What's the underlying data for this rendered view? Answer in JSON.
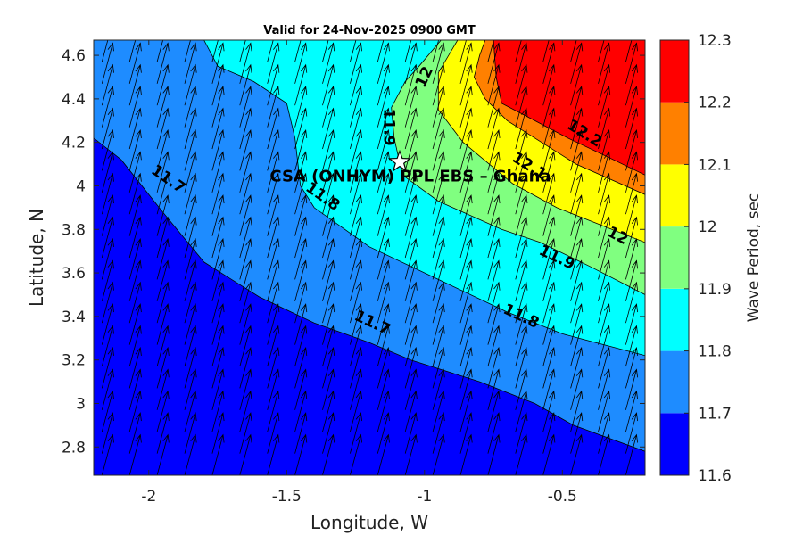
{
  "chart_data": {
    "type": "contour",
    "title": "Valid for 24-Nov-2025 0900 GMT",
    "xlabel": "Longitude, W",
    "ylabel": "Latitude, N",
    "xlim": [
      -2.2,
      -0.2
    ],
    "ylim": [
      2.67,
      4.67
    ],
    "x_ticks": [
      -2,
      -1.5,
      -1,
      -0.5
    ],
    "x_tick_labels": [
      "-2",
      "-1.5",
      "-1",
      "-0.5"
    ],
    "y_ticks": [
      2.8,
      3.0,
      3.2,
      3.4,
      3.6,
      3.8,
      4.0,
      4.2,
      4.4,
      4.6
    ],
    "y_tick_labels": [
      "2.8",
      "3",
      "3.2",
      "3.4",
      "3.6",
      "3.8",
      "4",
      "4.2",
      "4.4",
      "4.6"
    ],
    "colorbar": {
      "label": "Wave Period, sec",
      "levels": [
        11.6,
        11.7,
        11.8,
        11.9,
        12.0,
        12.1,
        12.2,
        12.3
      ],
      "level_labels": [
        "11.6",
        "11.7",
        "11.8",
        "11.9",
        "12",
        "12.1",
        "12.2",
        "12.3"
      ],
      "colors": [
        "#0000ff",
        "#1e8cff",
        "#00ffff",
        "#80ff80",
        "#ffff00",
        "#ff8000",
        "#ff0000"
      ]
    },
    "bands": [
      {
        "range": [
          11.6,
          11.7
        ],
        "color": "#0000ff",
        "polygon": [
          [
            -2.2,
            2.67
          ],
          [
            -0.2,
            2.67
          ],
          [
            -0.2,
            2.78
          ],
          [
            -0.46,
            2.9
          ],
          [
            -0.6,
            3.0
          ],
          [
            -0.8,
            3.1
          ],
          [
            -1.05,
            3.2
          ],
          [
            -1.2,
            3.28
          ],
          [
            -1.4,
            3.37
          ],
          [
            -1.6,
            3.49
          ],
          [
            -1.8,
            3.65
          ],
          [
            -1.95,
            3.88
          ],
          [
            -2.1,
            4.12
          ],
          [
            -2.2,
            4.22
          ]
        ]
      },
      {
        "range": [
          11.7,
          11.8
        ],
        "color": "#1e8cff",
        "polygon": [
          [
            -2.2,
            4.22
          ],
          [
            -2.1,
            4.12
          ],
          [
            -1.95,
            3.88
          ],
          [
            -1.8,
            3.65
          ],
          [
            -1.6,
            3.49
          ],
          [
            -1.4,
            3.37
          ],
          [
            -1.2,
            3.28
          ],
          [
            -1.05,
            3.2
          ],
          [
            -0.8,
            3.1
          ],
          [
            -0.6,
            3.0
          ],
          [
            -0.46,
            2.9
          ],
          [
            -0.2,
            2.78
          ],
          [
            -0.2,
            3.22
          ],
          [
            -0.5,
            3.32
          ],
          [
            -0.7,
            3.42
          ],
          [
            -0.95,
            3.57
          ],
          [
            -1.2,
            3.72
          ],
          [
            -1.4,
            3.9
          ],
          [
            -1.45,
            4.0
          ],
          [
            -1.47,
            4.22
          ],
          [
            -1.5,
            4.38
          ],
          [
            -1.62,
            4.48
          ],
          [
            -1.75,
            4.55
          ],
          [
            -1.8,
            4.67
          ],
          [
            -2.2,
            4.67
          ]
        ]
      },
      {
        "range": [
          11.8,
          11.9
        ],
        "color": "#00ffff",
        "polygon": [
          [
            -1.8,
            4.67
          ],
          [
            -1.75,
            4.55
          ],
          [
            -1.62,
            4.48
          ],
          [
            -1.5,
            4.38
          ],
          [
            -1.47,
            4.22
          ],
          [
            -1.45,
            4.0
          ],
          [
            -1.4,
            3.9
          ],
          [
            -1.2,
            3.72
          ],
          [
            -0.95,
            3.57
          ],
          [
            -0.7,
            3.42
          ],
          [
            -0.5,
            3.32
          ],
          [
            -0.2,
            3.22
          ],
          [
            -0.2,
            3.5
          ],
          [
            -0.4,
            3.63
          ],
          [
            -0.58,
            3.74
          ],
          [
            -0.72,
            3.8
          ],
          [
            -0.95,
            3.93
          ],
          [
            -1.08,
            4.05
          ],
          [
            -1.11,
            4.22
          ],
          [
            -1.12,
            4.36
          ],
          [
            -1.07,
            4.48
          ],
          [
            -1.02,
            4.55
          ],
          [
            -0.94,
            4.67
          ]
        ]
      },
      {
        "range": [
          11.9,
          12.0
        ],
        "color": "#80ff80",
        "polygon": [
          [
            -0.94,
            4.67
          ],
          [
            -1.02,
            4.55
          ],
          [
            -1.07,
            4.48
          ],
          [
            -1.12,
            4.36
          ],
          [
            -1.11,
            4.22
          ],
          [
            -1.08,
            4.05
          ],
          [
            -0.95,
            3.93
          ],
          [
            -0.72,
            3.8
          ],
          [
            -0.58,
            3.74
          ],
          [
            -0.4,
            3.63
          ],
          [
            -0.2,
            3.5
          ],
          [
            -0.2,
            3.74
          ],
          [
            -0.32,
            3.8
          ],
          [
            -0.52,
            3.9
          ],
          [
            -0.68,
            4.01
          ],
          [
            -0.86,
            4.2
          ],
          [
            -0.95,
            4.35
          ],
          [
            -0.95,
            4.52
          ],
          [
            -0.88,
            4.67
          ]
        ]
      },
      {
        "range": [
          12.0,
          12.1
        ],
        "color": "#ffff00",
        "polygon": [
          [
            -0.88,
            4.67
          ],
          [
            -0.95,
            4.52
          ],
          [
            -0.95,
            4.35
          ],
          [
            -0.86,
            4.2
          ],
          [
            -0.68,
            4.01
          ],
          [
            -0.52,
            3.9
          ],
          [
            -0.32,
            3.8
          ],
          [
            -0.2,
            3.74
          ],
          [
            -0.2,
            3.96
          ],
          [
            -0.45,
            4.1
          ],
          [
            -0.7,
            4.3
          ],
          [
            -0.78,
            4.4
          ],
          [
            -0.82,
            4.5
          ],
          [
            -0.8,
            4.6
          ],
          [
            -0.78,
            4.67
          ]
        ]
      },
      {
        "range": [
          12.1,
          12.2
        ],
        "color": "#ff8000",
        "polygon": [
          [
            -0.78,
            4.67
          ],
          [
            -0.8,
            4.6
          ],
          [
            -0.82,
            4.5
          ],
          [
            -0.78,
            4.4
          ],
          [
            -0.7,
            4.3
          ],
          [
            -0.45,
            4.1
          ],
          [
            -0.2,
            3.96
          ],
          [
            -0.2,
            4.05
          ],
          [
            -0.33,
            4.13
          ],
          [
            -0.48,
            4.22
          ],
          [
            -0.63,
            4.32
          ],
          [
            -0.72,
            4.38
          ],
          [
            -0.74,
            4.5
          ],
          [
            -0.75,
            4.67
          ]
        ]
      },
      {
        "range": [
          12.2,
          12.3
        ],
        "color": "#ff0000",
        "polygon": [
          [
            -0.75,
            4.67
          ],
          [
            -0.74,
            4.5
          ],
          [
            -0.72,
            4.38
          ],
          [
            -0.63,
            4.32
          ],
          [
            -0.48,
            4.22
          ],
          [
            -0.33,
            4.13
          ],
          [
            -0.2,
            4.05
          ],
          [
            -0.2,
            4.67
          ]
        ]
      }
    ],
    "contour_lines": [
      {
        "level": "11.7",
        "points": [
          [
            -2.2,
            4.22
          ],
          [
            -2.1,
            4.12
          ],
          [
            -1.95,
            3.88
          ],
          [
            -1.8,
            3.65
          ],
          [
            -1.6,
            3.49
          ],
          [
            -1.4,
            3.37
          ],
          [
            -1.2,
            3.28
          ],
          [
            -1.05,
            3.2
          ],
          [
            -0.8,
            3.1
          ],
          [
            -0.6,
            3.0
          ],
          [
            -0.46,
            2.9
          ],
          [
            -0.2,
            2.78
          ]
        ]
      },
      {
        "level": "11.8",
        "points": [
          [
            -1.8,
            4.67
          ],
          [
            -1.75,
            4.55
          ],
          [
            -1.62,
            4.48
          ],
          [
            -1.5,
            4.38
          ],
          [
            -1.47,
            4.22
          ],
          [
            -1.45,
            4.0
          ],
          [
            -1.4,
            3.9
          ],
          [
            -1.2,
            3.72
          ],
          [
            -0.95,
            3.57
          ],
          [
            -0.7,
            3.42
          ],
          [
            -0.5,
            3.32
          ],
          [
            -0.2,
            3.22
          ]
        ]
      },
      {
        "level": "11.9",
        "points": [
          [
            -0.94,
            4.67
          ],
          [
            -1.02,
            4.55
          ],
          [
            -1.07,
            4.48
          ],
          [
            -1.12,
            4.36
          ],
          [
            -1.11,
            4.22
          ],
          [
            -1.08,
            4.05
          ],
          [
            -0.95,
            3.93
          ],
          [
            -0.72,
            3.8
          ],
          [
            -0.58,
            3.74
          ],
          [
            -0.4,
            3.63
          ],
          [
            -0.2,
            3.5
          ]
        ]
      },
      {
        "level": "12",
        "points": [
          [
            -0.88,
            4.67
          ],
          [
            -0.95,
            4.52
          ],
          [
            -0.95,
            4.35
          ],
          [
            -0.86,
            4.2
          ],
          [
            -0.68,
            4.01
          ],
          [
            -0.52,
            3.9
          ],
          [
            -0.32,
            3.8
          ],
          [
            -0.2,
            3.74
          ]
        ]
      },
      {
        "level": "12.1",
        "points": [
          [
            -0.78,
            4.67
          ],
          [
            -0.8,
            4.6
          ],
          [
            -0.82,
            4.5
          ],
          [
            -0.78,
            4.4
          ],
          [
            -0.7,
            4.3
          ],
          [
            -0.45,
            4.1
          ],
          [
            -0.2,
            3.96
          ]
        ]
      },
      {
        "level": "12.2",
        "points": [
          [
            -0.75,
            4.67
          ],
          [
            -0.74,
            4.5
          ],
          [
            -0.72,
            4.38
          ],
          [
            -0.63,
            4.32
          ],
          [
            -0.48,
            4.22
          ],
          [
            -0.33,
            4.13
          ],
          [
            -0.2,
            4.05
          ]
        ]
      }
    ],
    "contour_labels": [
      {
        "text": "11.7",
        "x": -1.93,
        "y": 4.03,
        "angle": 35
      },
      {
        "text": "11.8",
        "x": -1.37,
        "y": 3.95,
        "angle": 35
      },
      {
        "text": "11.7",
        "x": -1.19,
        "y": 3.37,
        "angle": 25
      },
      {
        "text": "11.9",
        "x": -1.13,
        "y": 4.27,
        "angle": 90
      },
      {
        "text": "12",
        "x": -1.0,
        "y": 4.5,
        "angle": -65
      },
      {
        "text": "12.2",
        "x": -0.42,
        "y": 4.24,
        "angle": 32
      },
      {
        "text": "12.1",
        "x": -0.62,
        "y": 4.09,
        "angle": 32
      },
      {
        "text": "12",
        "x": -0.3,
        "y": 3.77,
        "angle": 28
      },
      {
        "text": "11.9",
        "x": -0.52,
        "y": 3.67,
        "angle": 25
      },
      {
        "text": "11.8",
        "x": -0.65,
        "y": 3.4,
        "angle": 25
      }
    ],
    "site": {
      "label": "CSA (ONHYM) PPL EBS  – Ghana",
      "marker": "star",
      "x": -1.09,
      "y": 4.11
    },
    "vectors": {
      "direction_deg_from_north": 15,
      "x_start": -2.17,
      "x_step": 0.1,
      "x_count": 20,
      "y_start": 2.67,
      "y_step": 0.1,
      "y_count": 20
    }
  }
}
